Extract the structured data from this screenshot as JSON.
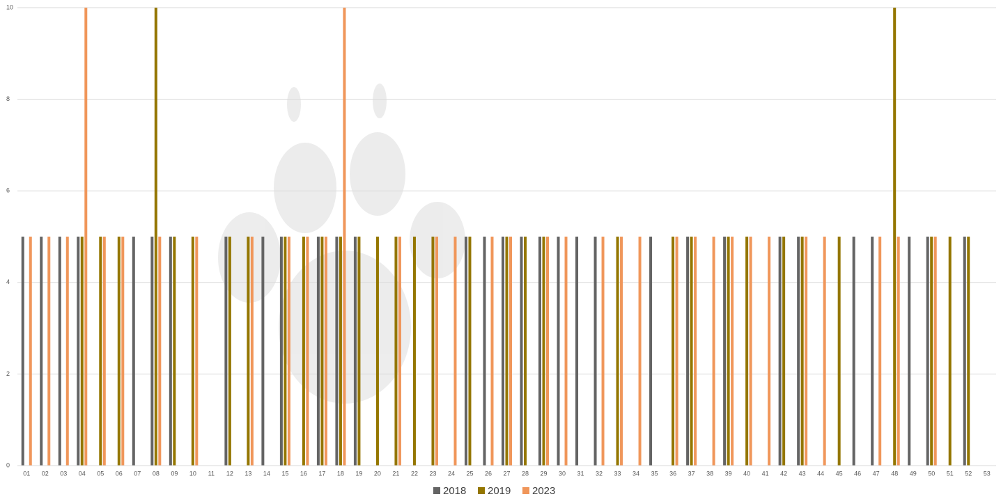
{
  "chart_data": {
    "type": "bar",
    "categories": [
      "01",
      "02",
      "03",
      "04",
      "05",
      "06",
      "07",
      "08",
      "09",
      "10",
      "11",
      "12",
      "13",
      "14",
      "15",
      "16",
      "17",
      "18",
      "19",
      "20",
      "21",
      "22",
      "23",
      "24",
      "25",
      "26",
      "27",
      "28",
      "29",
      "30",
      "31",
      "32",
      "33",
      "34",
      "35",
      "36",
      "37",
      "38",
      "39",
      "40",
      "41",
      "42",
      "43",
      "44",
      "45",
      "46",
      "47",
      "48",
      "49",
      "50",
      "51",
      "52",
      "53"
    ],
    "series": [
      {
        "name": "2018",
        "color": "#646464",
        "values": [
          5,
          5,
          5,
          5,
          0,
          0,
          5,
          5,
          5,
          0,
          0,
          5,
          0,
          5,
          5,
          0,
          5,
          5,
          5,
          0,
          0,
          0,
          0,
          0,
          5,
          5,
          5,
          5,
          5,
          5,
          5,
          5,
          0,
          0,
          5,
          0,
          5,
          0,
          5,
          0,
          0,
          5,
          5,
          0,
          0,
          5,
          5,
          0,
          5,
          5,
          0,
          5,
          0
        ]
      },
      {
        "name": "2019",
        "color": "#947600",
        "values": [
          0,
          0,
          0,
          5,
          5,
          5,
          0,
          10,
          5,
          5,
          0,
          5,
          5,
          0,
          5,
          5,
          5,
          5,
          5,
          5,
          5,
          5,
          5,
          0,
          5,
          0,
          5,
          5,
          5,
          0,
          0,
          0,
          5,
          0,
          0,
          5,
          5,
          0,
          5,
          5,
          0,
          5,
          5,
          0,
          5,
          0,
          0,
          10,
          0,
          5,
          5,
          5,
          0
        ]
      },
      {
        "name": "2023",
        "color": "#f0965a",
        "values": [
          5,
          5,
          5,
          10,
          5,
          5,
          0,
          5,
          0,
          5,
          0,
          0,
          5,
          0,
          5,
          5,
          5,
          10,
          0,
          0,
          5,
          0,
          5,
          5,
          0,
          5,
          5,
          0,
          5,
          5,
          0,
          5,
          5,
          5,
          0,
          5,
          5,
          5,
          5,
          5,
          5,
          0,
          5,
          5,
          0,
          0,
          5,
          5,
          0,
          5,
          0,
          0,
          0
        ]
      }
    ],
    "ylim": [
      0,
      10
    ],
    "yticks": [
      0,
      2,
      4,
      6,
      8,
      10
    ],
    "grid": true,
    "legend": "bottom"
  }
}
